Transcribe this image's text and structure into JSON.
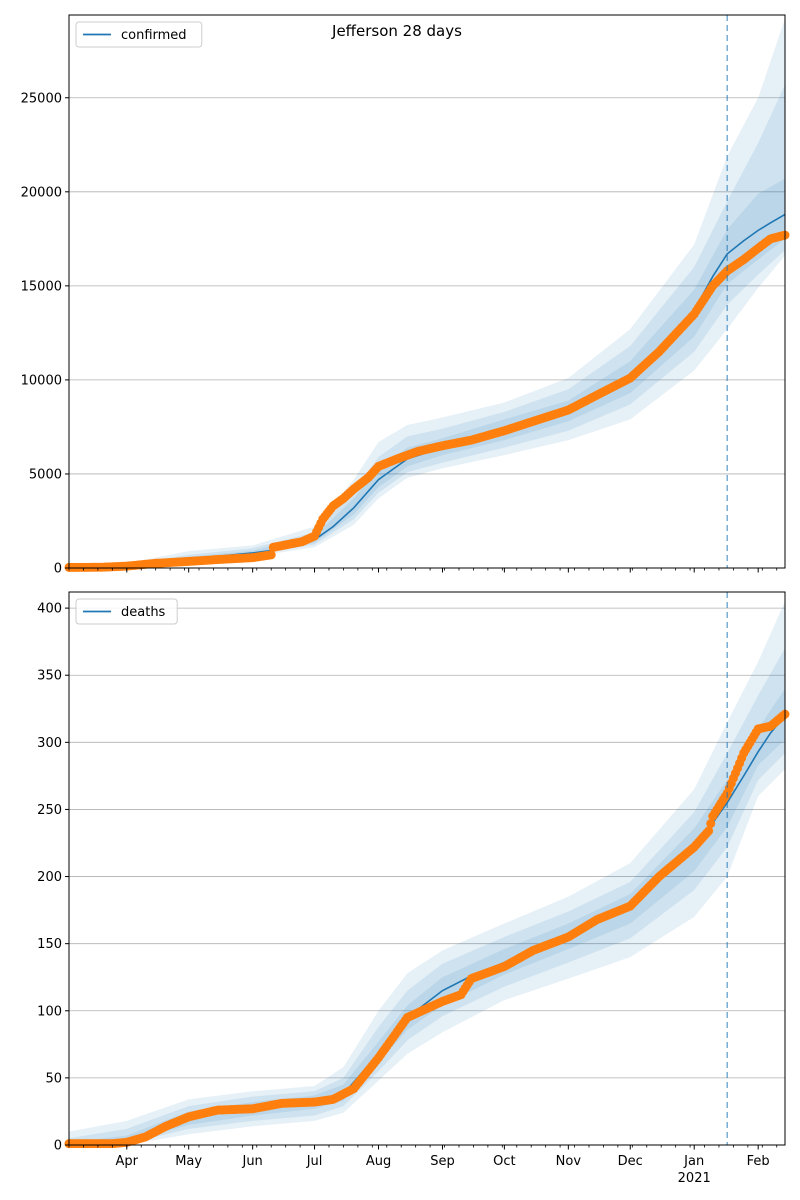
{
  "title": "Jefferson 28 days",
  "colors": {
    "fit_line": "#1f77b4",
    "band": "#1f77b4",
    "observed": "#ff7f0e",
    "vline": "#1f77b4",
    "grid": "#b0b0b0"
  },
  "x_ticks": [
    {
      "date": "2020-04-01",
      "label": "Apr"
    },
    {
      "date": "2020-05-01",
      "label": "May"
    },
    {
      "date": "2020-06-01",
      "label": "Jun"
    },
    {
      "date": "2020-07-01",
      "label": "Jul"
    },
    {
      "date": "2020-08-01",
      "label": "Aug"
    },
    {
      "date": "2020-09-01",
      "label": "Sep"
    },
    {
      "date": "2020-10-01",
      "label": "Oct"
    },
    {
      "date": "2020-11-01",
      "label": "Nov"
    },
    {
      "date": "2020-12-01",
      "label": "Dec"
    },
    {
      "date": "2021-01-01",
      "label": "Jan",
      "sublabel": "2021"
    },
    {
      "date": "2021-02-01",
      "label": "Feb"
    }
  ],
  "chart_data": [
    {
      "type": "line",
      "name": "confirmed",
      "legend": "confirmed",
      "legend_position": "top-left",
      "grid": "y",
      "xlim": [
        "2020-03-04",
        "2021-02-14"
      ],
      "ylim": [
        0,
        29400
      ],
      "yticks": [
        0,
        5000,
        10000,
        15000,
        20000,
        25000
      ],
      "forecast_start": "2021-01-17",
      "fit": {
        "x": [
          "2020-03-04",
          "2020-03-20",
          "2020-04-01",
          "2020-04-15",
          "2020-05-01",
          "2020-05-15",
          "2020-06-01",
          "2020-06-15",
          "2020-07-01",
          "2020-07-10",
          "2020-07-20",
          "2020-08-01",
          "2020-08-15",
          "2020-09-01",
          "2020-09-15",
          "2020-10-01",
          "2020-10-15",
          "2020-11-01",
          "2020-11-15",
          "2020-12-01",
          "2020-12-15",
          "2021-01-01",
          "2021-01-10",
          "2021-01-17",
          "2021-01-25",
          "2021-02-01",
          "2021-02-07",
          "2021-02-14"
        ],
        "y": [
          20,
          40,
          120,
          300,
          500,
          620,
          800,
          1000,
          1500,
          2200,
          3200,
          4700,
          5800,
          6400,
          6800,
          7400,
          7900,
          8600,
          9300,
          10300,
          11500,
          13700,
          15500,
          16700,
          17400,
          17950,
          18350,
          18800
        ]
      },
      "bands": [
        {
          "x": [
            "2020-03-04",
            "2020-04-01",
            "2020-05-01",
            "2020-06-01",
            "2020-07-01",
            "2020-07-20",
            "2020-08-01",
            "2020-08-15",
            "2020-09-01",
            "2020-10-01",
            "2020-11-01",
            "2020-12-01",
            "2021-01-01",
            "2021-01-17",
            "2021-02-01",
            "2021-02-14"
          ],
          "lower": [
            0,
            60,
            300,
            600,
            1100,
            2300,
            3700,
            4800,
            5300,
            6000,
            6800,
            7900,
            10500,
            12700,
            14900,
            16600
          ],
          "upper": [
            60,
            250,
            900,
            1200,
            2200,
            4700,
            6700,
            7600,
            8000,
            8800,
            10100,
            12700,
            17200,
            21900,
            25000,
            29200
          ]
        },
        {
          "x": [
            "2020-03-04",
            "2020-04-01",
            "2020-05-01",
            "2020-06-01",
            "2020-07-01",
            "2020-07-20",
            "2020-08-01",
            "2020-08-15",
            "2020-09-01",
            "2020-10-01",
            "2020-11-01",
            "2020-12-01",
            "2021-01-01",
            "2021-01-17",
            "2021-02-01",
            "2021-02-14"
          ],
          "lower": [
            5,
            80,
            380,
            680,
            1250,
            2600,
            4000,
            5100,
            5600,
            6400,
            7300,
            8700,
            11500,
            14000,
            15600,
            16900
          ],
          "upper": [
            45,
            190,
            700,
            1050,
            1900,
            4100,
            5900,
            7000,
            7400,
            8300,
            9500,
            11800,
            16000,
            19500,
            22600,
            25700
          ]
        },
        {
          "x": [
            "2020-03-04",
            "2020-04-01",
            "2020-05-01",
            "2020-06-01",
            "2020-07-01",
            "2020-07-20",
            "2020-08-01",
            "2020-08-15",
            "2020-09-01",
            "2020-10-01",
            "2020-11-01",
            "2020-12-01",
            "2021-01-01",
            "2021-01-17",
            "2021-02-01",
            "2021-02-14"
          ],
          "lower": [
            10,
            95,
            430,
            730,
            1350,
            2850,
            4300,
            5400,
            6000,
            6800,
            7800,
            9300,
            12300,
            15100,
            16400,
            17500
          ],
          "upper": [
            35,
            160,
            600,
            920,
            1700,
            3700,
            5300,
            6400,
            6900,
            7900,
            8900,
            11000,
            14800,
            18000,
            19900,
            20700
          ]
        }
      ],
      "observed": {
        "x": [
          "2020-03-04",
          "2020-03-20",
          "2020-04-01",
          "2020-04-15",
          "2020-05-01",
          "2020-05-15",
          "2020-06-01",
          "2020-06-10",
          "2020-06-11",
          "2020-06-25",
          "2020-07-01",
          "2020-07-05",
          "2020-07-10",
          "2020-07-15",
          "2020-07-20",
          "2020-07-27",
          "2020-08-01",
          "2020-08-10",
          "2020-08-20",
          "2020-09-01",
          "2020-09-15",
          "2020-10-01",
          "2020-10-15",
          "2020-11-01",
          "2020-11-15",
          "2020-12-01",
          "2020-12-15",
          "2021-01-01",
          "2021-01-10",
          "2021-01-17",
          "2021-01-25",
          "2021-02-01",
          "2021-02-07",
          "2021-02-14"
        ],
        "y": [
          30,
          40,
          100,
          250,
          350,
          450,
          550,
          700,
          1100,
          1400,
          1700,
          2600,
          3300,
          3700,
          4200,
          4800,
          5400,
          5800,
          6200,
          6500,
          6800,
          7300,
          7800,
          8400,
          9200,
          10100,
          11500,
          13500,
          15000,
          15800,
          16400,
          17000,
          17500,
          17700
        ]
      }
    },
    {
      "type": "line",
      "name": "deaths",
      "legend": "deaths",
      "legend_position": "top-left",
      "grid": "y",
      "xlim": [
        "2020-03-04",
        "2021-02-14"
      ],
      "ylim": [
        0,
        412
      ],
      "yticks": [
        0,
        50,
        100,
        150,
        200,
        250,
        300,
        350,
        400
      ],
      "forecast_start": "2021-01-17",
      "fit": {
        "x": [
          "2020-03-04",
          "2020-03-20",
          "2020-04-01",
          "2020-04-15",
          "2020-05-01",
          "2020-05-15",
          "2020-06-01",
          "2020-06-15",
          "2020-07-01",
          "2020-07-15",
          "2020-08-01",
          "2020-08-15",
          "2020-09-01",
          "2020-09-15",
          "2020-10-01",
          "2020-10-15",
          "2020-11-01",
          "2020-11-15",
          "2020-12-01",
          "2020-12-15",
          "2021-01-01",
          "2021-01-10",
          "2021-01-17",
          "2021-01-25",
          "2021-02-01",
          "2021-02-07",
          "2021-02-14"
        ],
        "y": [
          0,
          1,
          3,
          12,
          20,
          24,
          27,
          30,
          32,
          38,
          68,
          95,
          115,
          126,
          136,
          145,
          156,
          167,
          180,
          197,
          222,
          240,
          255,
          275,
          293,
          307,
          320
        ]
      },
      "bands": [
        {
          "x": [
            "2020-03-04",
            "2020-04-01",
            "2020-05-01",
            "2020-06-01",
            "2020-07-01",
            "2020-07-15",
            "2020-08-01",
            "2020-08-15",
            "2020-09-01",
            "2020-10-01",
            "2020-11-01",
            "2020-12-01",
            "2021-01-01",
            "2021-01-17",
            "2021-02-01",
            "2021-02-14"
          ],
          "lower": [
            0,
            0,
            8,
            14,
            18,
            24,
            48,
            68,
            84,
            108,
            124,
            140,
            170,
            200,
            260,
            280
          ],
          "upper": [
            10,
            18,
            34,
            40,
            44,
            58,
            100,
            128,
            145,
            165,
            185,
            210,
            265,
            315,
            360,
            405
          ]
        },
        {
          "x": [
            "2020-03-04",
            "2020-04-01",
            "2020-05-01",
            "2020-06-01",
            "2020-07-01",
            "2020-07-15",
            "2020-08-01",
            "2020-08-15",
            "2020-09-01",
            "2020-10-01",
            "2020-11-01",
            "2020-12-01",
            "2021-01-01",
            "2021-01-17",
            "2021-02-01",
            "2021-02-14"
          ],
          "lower": [
            0,
            1,
            12,
            18,
            22,
            29,
            55,
            78,
            96,
            118,
            136,
            154,
            190,
            222,
            272,
            292
          ],
          "upper": [
            5,
            12,
            29,
            36,
            40,
            50,
            88,
            115,
            135,
            155,
            174,
            196,
            248,
            292,
            335,
            370
          ]
        },
        {
          "x": [
            "2020-03-04",
            "2020-04-01",
            "2020-05-01",
            "2020-06-01",
            "2020-07-01",
            "2020-07-15",
            "2020-08-01",
            "2020-08-15",
            "2020-09-01",
            "2020-10-01",
            "2020-11-01",
            "2020-12-01",
            "2021-01-01",
            "2021-01-17",
            "2021-02-01",
            "2021-02-14"
          ],
          "lower": [
            0,
            2,
            15,
            22,
            27,
            33,
            61,
            86,
            104,
            127,
            146,
            165,
            204,
            237,
            283,
            302
          ],
          "upper": [
            2,
            7,
            25,
            32,
            37,
            45,
            77,
            104,
            125,
            146,
            165,
            187,
            236,
            272,
            310,
            340
          ]
        }
      ],
      "observed": {
        "x": [
          "2020-03-04",
          "2020-03-25",
          "2020-04-01",
          "2020-04-10",
          "2020-04-20",
          "2020-05-01",
          "2020-05-15",
          "2020-06-01",
          "2020-06-15",
          "2020-07-01",
          "2020-07-10",
          "2020-07-20",
          "2020-08-01",
          "2020-08-15",
          "2020-09-01",
          "2020-09-10",
          "2020-09-15",
          "2020-10-01",
          "2020-10-15",
          "2020-11-01",
          "2020-11-15",
          "2020-12-01",
          "2020-12-15",
          "2021-01-01",
          "2021-01-08",
          "2021-01-10",
          "2021-01-17",
          "2021-01-25",
          "2021-02-01",
          "2021-02-07",
          "2021-02-14"
        ],
        "y": [
          1,
          1,
          2,
          6,
          14,
          21,
          26,
          27,
          31,
          32,
          34,
          42,
          65,
          95,
          107,
          112,
          124,
          133,
          145,
          155,
          168,
          178,
          200,
          222,
          234,
          245,
          262,
          292,
          310,
          312,
          321
        ]
      }
    }
  ]
}
